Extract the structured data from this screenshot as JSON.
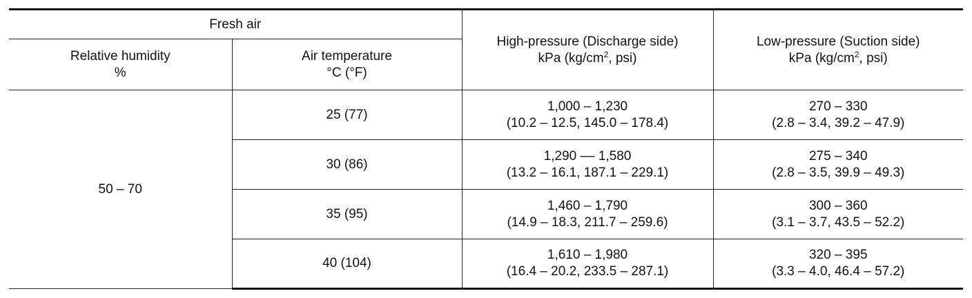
{
  "header": {
    "fresh_air": "Fresh air",
    "humidity_line1": "Relative humidity",
    "humidity_line2": "%",
    "temp_line1": "Air temperature",
    "temp_line2": "°C (°F)",
    "high_line1": "High-pressure (Discharge side)",
    "high_unit_prefix": "kPa (kg/cm",
    "high_unit_sup": "2",
    "high_unit_suffix": ", psi)",
    "low_line1": "Low-pressure (Suction side)",
    "low_unit_prefix": "kPa (kg/cm",
    "low_unit_sup": "2",
    "low_unit_suffix": ", psi)"
  },
  "humidity_value": "50 – 70",
  "rows": [
    {
      "temp": "25 (77)",
      "high_a": "1,000 – 1,230",
      "high_b": "(10.2 – 12.5, 145.0 – 178.4)",
      "low_a": "270 – 330",
      "low_b": "(2.8 – 3.4, 39.2 – 47.9)"
    },
    {
      "temp": "30 (86)",
      "high_a": "1,290 –– 1,580",
      "high_b": "(13.2 – 16.1, 187.1 – 229.1)",
      "low_a": "275 – 340",
      "low_b": "(2.8 – 3.5, 39.9 – 49.3)"
    },
    {
      "temp": "35 (95)",
      "high_a": "1,460 – 1,790",
      "high_b": "(14.9 – 18.3, 211.7 – 259.6)",
      "low_a": "300 – 360",
      "low_b": "(3.1 – 3.7, 43.5 – 52.2)"
    },
    {
      "temp": "40 (104)",
      "high_a": "1,610 – 1,980",
      "high_b": "(16.4 – 20.2, 233.5 – 287.1)",
      "low_a": "320 – 395",
      "low_b": "(3.3 – 4.0, 46.4 – 57.2)"
    }
  ]
}
